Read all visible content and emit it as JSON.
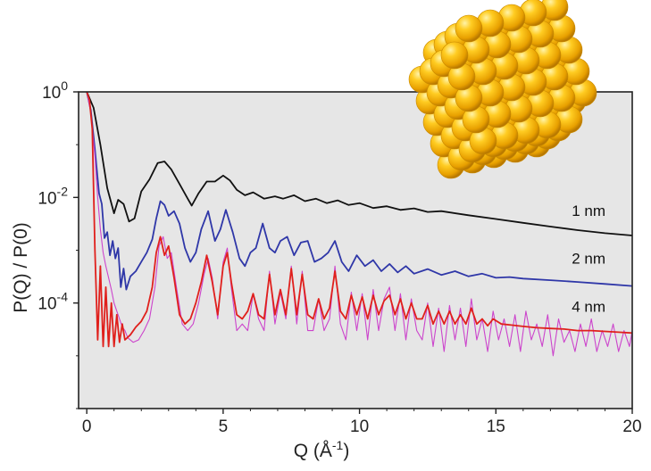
{
  "chart_data": {
    "type": "line",
    "title": "",
    "xlabel": "Q (Å",
    "xlabel_sup": "-1",
    "xlabel_close": ")",
    "ylabel": "P(Q) / P(0)",
    "xlim": [
      -0.3,
      20
    ],
    "ylim": [
      1e-06,
      1
    ],
    "yscale": "log",
    "grid": false,
    "plot_background": "#e6e6e6",
    "x_ticks": [
      {
        "value": 0,
        "label": "0"
      },
      {
        "value": 5,
        "label": "5"
      },
      {
        "value": 10,
        "label": "10"
      },
      {
        "value": 15,
        "label": "15"
      },
      {
        "value": 20,
        "label": "20"
      }
    ],
    "y_ticks": [
      {
        "value": 1,
        "base": "10",
        "exp": "0"
      },
      {
        "value": 0.01,
        "base": "10",
        "exp": "-2"
      },
      {
        "value": 0.0001,
        "base": "10",
        "exp": "-4"
      }
    ],
    "series": [
      {
        "name": "1 nm",
        "color": "#111111",
        "label_at": [
          18.4,
          0.0045
        ],
        "x": [
          0,
          0.25,
          0.5,
          0.75,
          1.0,
          1.15,
          1.35,
          1.55,
          1.75,
          2.0,
          2.3,
          2.6,
          2.85,
          3.1,
          3.4,
          3.7,
          3.85,
          4.1,
          4.4,
          4.7,
          5.0,
          5.25,
          5.5,
          5.8,
          6.1,
          6.5,
          6.9,
          7.2,
          7.6,
          8.0,
          8.4,
          8.8,
          9.2,
          9.6,
          10.0,
          10.5,
          11.0,
          11.5,
          12.0,
          12.5,
          13.0,
          14.0,
          15.0,
          16.0,
          17.0,
          18.0,
          19.0,
          20.0
        ],
        "y": [
          1.0,
          0.5,
          0.1,
          0.015,
          0.005,
          0.009,
          0.0075,
          0.0035,
          0.004,
          0.013,
          0.022,
          0.045,
          0.048,
          0.034,
          0.018,
          0.0095,
          0.007,
          0.012,
          0.02,
          0.02,
          0.026,
          0.021,
          0.014,
          0.011,
          0.0125,
          0.0095,
          0.0105,
          0.0095,
          0.011,
          0.0085,
          0.0095,
          0.0078,
          0.0088,
          0.0072,
          0.0078,
          0.0063,
          0.0068,
          0.0058,
          0.0062,
          0.0053,
          0.0055,
          0.0046,
          0.0039,
          0.0033,
          0.0028,
          0.0024,
          0.0021,
          0.0019
        ]
      },
      {
        "name": "2 nm",
        "color": "#2f37a8",
        "label_at": [
          18.4,
          0.00056
        ],
        "x": [
          0,
          0.15,
          0.3,
          0.45,
          0.55,
          0.65,
          0.75,
          0.85,
          0.95,
          1.05,
          1.15,
          1.25,
          1.35,
          1.45,
          1.6,
          1.8,
          2.0,
          2.2,
          2.4,
          2.55,
          2.7,
          2.85,
          3.0,
          3.2,
          3.4,
          3.6,
          3.8,
          4.0,
          4.2,
          4.45,
          4.7,
          4.9,
          5.1,
          5.35,
          5.6,
          5.8,
          6.0,
          6.2,
          6.45,
          6.7,
          6.9,
          7.1,
          7.35,
          7.6,
          7.85,
          8.1,
          8.35,
          8.6,
          8.85,
          9.1,
          9.35,
          9.6,
          9.9,
          10.2,
          10.5,
          10.8,
          11.1,
          11.4,
          11.7,
          12.0,
          12.5,
          13.0,
          13.5,
          14.0,
          14.5,
          15.0,
          15.5,
          16.0,
          17.0,
          18.0,
          19.0,
          20.0
        ],
        "y": [
          1.0,
          0.45,
          0.08,
          0.012,
          0.0075,
          0.0017,
          0.0022,
          0.0008,
          0.0015,
          0.0007,
          0.0011,
          0.0002,
          0.00045,
          0.00018,
          0.00032,
          0.0004,
          0.0006,
          0.0009,
          0.0016,
          0.004,
          0.0085,
          0.0072,
          0.0045,
          0.0055,
          0.0032,
          0.0011,
          0.0006,
          0.0009,
          0.0025,
          0.0055,
          0.0015,
          0.0025,
          0.0058,
          0.0022,
          0.0007,
          0.0005,
          0.0009,
          0.0011,
          0.0032,
          0.0011,
          0.0009,
          0.0015,
          0.0018,
          0.0008,
          0.0014,
          0.0015,
          0.0006,
          0.0007,
          0.0009,
          0.0015,
          0.0006,
          0.0004,
          0.0008,
          0.0005,
          0.00065,
          0.0004,
          0.00055,
          0.00038,
          0.0005,
          0.00036,
          0.00044,
          0.00034,
          0.0004,
          0.00032,
          0.00036,
          0.0003,
          0.00031,
          0.00029,
          0.00027,
          0.00025,
          0.00023,
          0.00021
        ]
      },
      {
        "name": "",
        "color": "#cc44cc",
        "x": [
          0,
          0.15,
          0.3,
          0.4,
          0.5,
          0.6,
          0.7,
          0.8,
          0.9,
          1.0,
          1.1,
          1.2,
          1.3,
          1.4,
          1.5,
          1.7,
          1.9,
          2.1,
          2.3,
          2.5,
          2.65,
          2.8,
          2.95,
          3.1,
          3.3,
          3.5,
          3.7,
          3.9,
          4.1,
          4.3,
          4.45,
          4.6,
          4.8,
          5.0,
          5.15,
          5.3,
          5.5,
          5.7,
          5.9,
          6.1,
          6.3,
          6.5,
          6.7,
          6.9,
          7.1,
          7.3,
          7.5,
          7.7,
          7.9,
          8.1,
          8.3,
          8.5,
          8.7,
          8.9,
          9.1,
          9.3,
          9.5,
          9.7,
          9.9,
          10.1,
          10.3,
          10.5,
          10.7,
          10.9,
          11.1,
          11.3,
          11.5,
          11.7,
          11.9,
          12.1,
          12.3,
          12.5,
          12.7,
          12.9,
          13.1,
          13.3,
          13.5,
          13.7,
          13.9,
          14.1,
          14.3,
          14.5,
          14.7,
          14.9,
          15.1,
          15.3,
          15.5,
          15.7,
          15.9,
          16.1,
          16.3,
          16.5,
          16.7,
          16.9,
          17.1,
          17.3,
          17.5,
          17.7,
          17.9,
          18.1,
          18.3,
          18.5,
          18.7,
          18.9,
          19.1,
          19.3,
          19.5,
          19.7,
          19.9,
          20.0
        ],
        "y": [
          1.0,
          0.4,
          0.06,
          0.01,
          0.0025,
          0.0009,
          0.0005,
          0.0003,
          0.00018,
          0.0001,
          7e-05,
          5e-05,
          3.5e-05,
          3e-05,
          2.2e-05,
          1.8e-05,
          2e-05,
          3e-05,
          5e-05,
          0.0002,
          0.0012,
          0.0018,
          0.0007,
          0.0009,
          0.00018,
          4e-05,
          3e-05,
          4e-05,
          0.0001,
          0.00035,
          0.0007,
          0.0003,
          5e-05,
          0.0006,
          0.0011,
          0.0002,
          3e-05,
          4e-05,
          3e-05,
          0.00015,
          5e-05,
          3e-05,
          0.0004,
          4e-05,
          0.00016,
          5e-05,
          0.0005,
          4e-05,
          0.0004,
          3e-05,
          3e-05,
          0.00012,
          3e-05,
          5e-05,
          0.0005,
          4e-05,
          2e-05,
          0.00016,
          3e-05,
          0.00015,
          2e-05,
          0.00018,
          3e-05,
          0.00012,
          0.0002,
          3e-05,
          0.00015,
          2e-05,
          0.00012,
          3e-05,
          2e-05,
          0.0001,
          1.5e-05,
          8e-05,
          1.2e-05,
          9e-05,
          2e-05,
          8e-05,
          1.5e-05,
          0.00012,
          2e-05,
          5e-05,
          1.2e-05,
          7e-05,
          2e-05,
          5e-05,
          1.5e-05,
          6e-05,
          1.2e-05,
          7e-05,
          2e-05,
          4e-05,
          1.5e-05,
          6e-05,
          1e-05,
          5e-05,
          1.8e-05,
          3e-05,
          1.2e-05,
          4e-05,
          1.5e-05,
          5e-05,
          1.2e-05,
          3e-05,
          1.5e-05,
          4e-05,
          1.2e-05,
          3e-05,
          1.5e-05,
          3e-05
        ]
      },
      {
        "name": "4 nm",
        "color": "#e0201c",
        "label_at": [
          18.4,
          6.8e-05
        ],
        "x": [
          0,
          0.1,
          0.2,
          0.3,
          0.4,
          0.5,
          0.6,
          0.7,
          0.8,
          0.9,
          1.0,
          1.1,
          1.2,
          1.3,
          1.4,
          1.6,
          1.8,
          2.0,
          2.2,
          2.4,
          2.55,
          2.7,
          2.85,
          3.0,
          3.2,
          3.4,
          3.6,
          3.8,
          4.0,
          4.2,
          4.4,
          4.6,
          4.8,
          5.0,
          5.15,
          5.3,
          5.5,
          5.7,
          5.9,
          6.1,
          6.3,
          6.5,
          6.7,
          6.9,
          7.1,
          7.3,
          7.5,
          7.7,
          7.9,
          8.1,
          8.3,
          8.5,
          8.7,
          8.9,
          9.1,
          9.3,
          9.5,
          9.7,
          9.9,
          10.1,
          10.3,
          10.5,
          10.7,
          10.9,
          11.1,
          11.3,
          11.5,
          11.7,
          11.9,
          12.1,
          12.3,
          12.5,
          12.7,
          12.9,
          13.1,
          13.3,
          13.5,
          13.7,
          13.9,
          14.1,
          14.3,
          14.5,
          14.7,
          14.9,
          15.2,
          15.6,
          16.0,
          16.5,
          17.0,
          17.5,
          18.0,
          18.5,
          19.0,
          19.5,
          20.0
        ],
        "y": [
          1.0,
          0.7,
          0.2,
          0.001,
          2e-05,
          0.0005,
          1.5e-05,
          0.0002,
          1.5e-05,
          0.0001,
          1.5e-05,
          6e-05,
          1.8e-05,
          4e-05,
          2e-05,
          2.5e-05,
          3.5e-05,
          4.5e-05,
          7e-05,
          0.0002,
          0.0009,
          0.0018,
          0.0008,
          0.0012,
          0.0003,
          6e-05,
          4e-05,
          5e-05,
          0.0001,
          0.00025,
          0.0008,
          0.00025,
          6e-05,
          0.0005,
          0.0009,
          0.00025,
          6e-05,
          5e-05,
          7e-05,
          0.00015,
          6e-05,
          5e-05,
          0.00035,
          6e-05,
          0.00018,
          6e-05,
          0.00045,
          6e-05,
          0.00035,
          6e-05,
          5e-05,
          0.00012,
          5e-05,
          8e-05,
          0.0004,
          7e-05,
          5e-05,
          0.00014,
          6e-05,
          0.00013,
          5e-05,
          0.00014,
          6e-05,
          0.00011,
          0.00014,
          6e-05,
          0.00012,
          5e-05,
          0.0001,
          5e-05,
          5e-05,
          9e-05,
          4e-05,
          7e-05,
          4e-05,
          7e-05,
          4e-05,
          6e-05,
          4e-05,
          8e-05,
          4e-05,
          5e-05,
          3.7e-05,
          5e-05,
          4e-05,
          3.8e-05,
          3.6e-05,
          3.4e-05,
          3.3e-05,
          3.2e-05,
          3e-05,
          3e-05,
          2.9e-05,
          2.8e-05,
          2.7e-05
        ]
      }
    ],
    "inset": {
      "description_icon": "nanoparticle-cluster-icon",
      "sphere_color": "#f2b705"
    }
  }
}
